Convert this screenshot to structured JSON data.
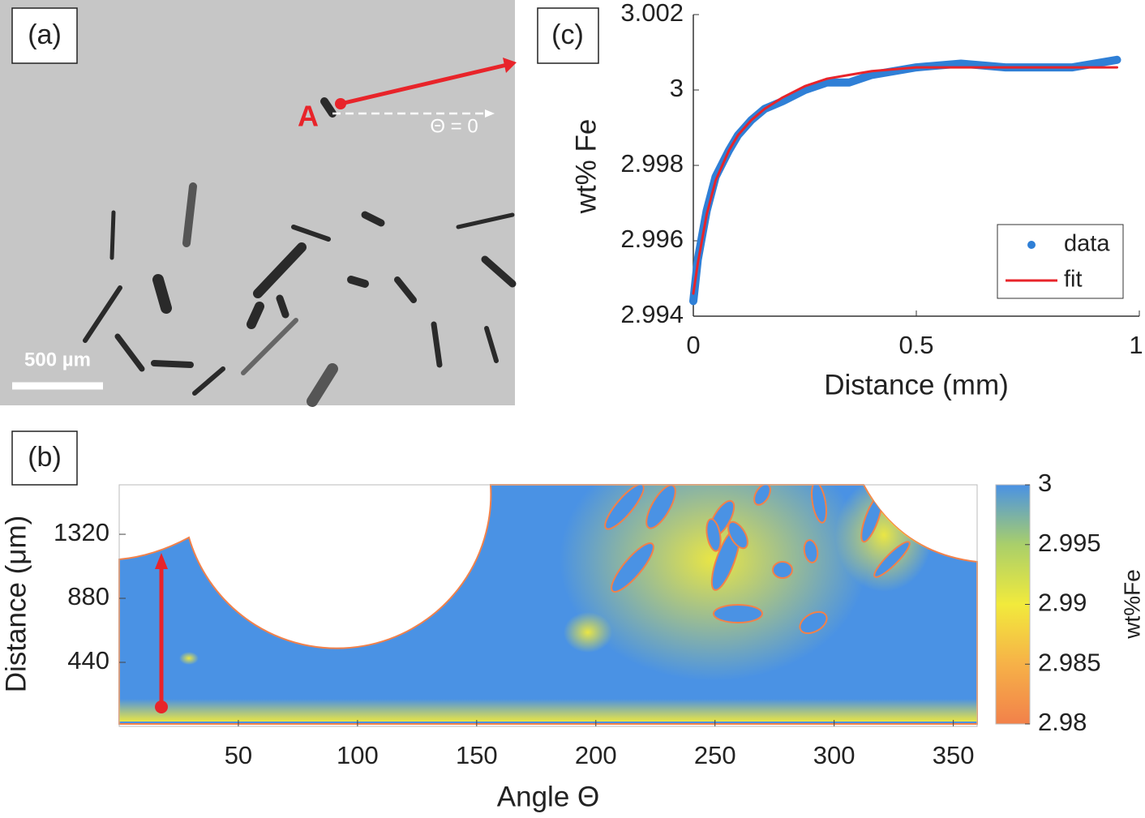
{
  "panel_a": {
    "label": "(a)",
    "point_label": "A",
    "angle_label": "Θ = 0",
    "scale_bar": "500 µm"
  },
  "chart_data": [
    {
      "type": "heatmap",
      "panel": "(b)",
      "xlabel": "Angle Θ",
      "ylabel": "Distance (μm)",
      "xlim": [
        0,
        360
      ],
      "xticks": [
        50,
        100,
        150,
        200,
        250,
        300,
        350
      ],
      "ylim": [
        0,
        1660
      ],
      "yticks": [
        440,
        880,
        1320
      ],
      "clim": [
        2.98,
        3
      ],
      "cticks": [
        2.98,
        2.985,
        2.99,
        2.995,
        3
      ],
      "colorbar_label": "wt%Fe",
      "colormap": [
        "#f2814a",
        "#f6b148",
        "#f2ea3c",
        "#a9cf6a",
        "#4a92e4"
      ]
    },
    {
      "type": "line",
      "panel": "(c)",
      "xlabel": "Distance (mm)",
      "ylabel": "wt% Fe",
      "xlim": [
        0,
        1
      ],
      "xticks": [
        0,
        0.5,
        1
      ],
      "ylim": [
        2.994,
        3.002
      ],
      "yticks": [
        2.994,
        2.996,
        2.998,
        3,
        3.002
      ],
      "x": [
        0,
        0.01,
        0.03,
        0.05,
        0.08,
        0.1,
        0.13,
        0.16,
        0.2,
        0.25,
        0.3,
        0.35,
        0.4,
        0.5,
        0.6,
        0.7,
        0.8,
        0.85,
        0.9,
        0.95
      ],
      "legend": "lower right",
      "series": [
        {
          "name": "data",
          "color": "#2f7fd6",
          "values": [
            2.9944,
            2.9955,
            2.9968,
            2.9977,
            2.9984,
            2.9988,
            2.9992,
            2.9995,
            2.9997,
            3.0,
            3.0002,
            3.0002,
            3.0004,
            3.0006,
            3.0007,
            3.0006,
            3.0006,
            3.0006,
            3.0007,
            3.0008
          ]
        },
        {
          "name": "fit",
          "color": "#e8242a",
          "values": [
            2.9946,
            2.9954,
            2.9967,
            2.9976,
            2.9984,
            2.9988,
            2.9992,
            2.9995,
            2.9998,
            3.0001,
            3.0003,
            3.0004,
            3.0005,
            3.0006,
            3.0006,
            3.0006,
            3.0006,
            3.0006,
            3.0006,
            3.0006
          ]
        }
      ]
    }
  ]
}
